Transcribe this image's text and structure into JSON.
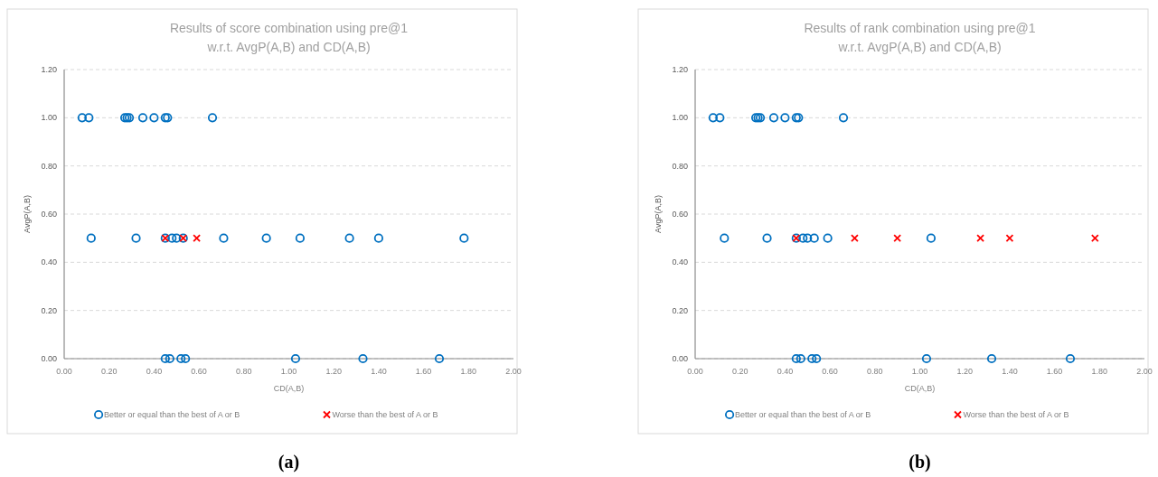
{
  "chart_data": [
    {
      "type": "scatter",
      "title": "Results of score combination using pre@1\nw.r.t. AvgP(A,B) and CD(A,B)",
      "xlabel": "CD(A,B)",
      "ylabel": "AvgP(A,B)",
      "xlim": [
        0,
        2
      ],
      "ylim": [
        0,
        1.2
      ],
      "xticks": [
        {
          "value": 0,
          "label": "0.00"
        },
        {
          "value": 0.2,
          "label": "0.20"
        },
        {
          "value": 0.4,
          "label": "0.40"
        },
        {
          "value": 0.6,
          "label": "0.60"
        },
        {
          "value": 0.8,
          "label": "0.80"
        },
        {
          "value": 1,
          "label": "1.00"
        },
        {
          "value": 1.2,
          "label": "1.20"
        },
        {
          "value": 1.4,
          "label": "1.40"
        },
        {
          "value": 1.6,
          "label": "1.60"
        },
        {
          "value": 1.8,
          "label": "1.80"
        },
        {
          "value": 2,
          "label": "2.00"
        }
      ],
      "yticks": [
        {
          "value": 0,
          "label": "0.00"
        },
        {
          "value": 0.2,
          "label": "0.20"
        },
        {
          "value": 0.4,
          "label": "0.40"
        },
        {
          "value": 0.6,
          "label": "0.60"
        },
        {
          "value": 0.8,
          "label": "0.80"
        },
        {
          "value": 1,
          "label": "1.00"
        },
        {
          "value": 1.2,
          "label": "1.20"
        }
      ],
      "grid": "y",
      "legend": "bottom",
      "annotations": [
        "(a)"
      ],
      "series": [
        {
          "name": "Better or equal than the best of A or B",
          "color": "#0070c0",
          "marker": "circle",
          "x": [
            0.08,
            0.11,
            0.27,
            0.28,
            0.29,
            0.35,
            0.4,
            0.45,
            0.46,
            0.66,
            0.12,
            0.32,
            0.45,
            0.48,
            0.5,
            0.53,
            0.71,
            0.9,
            1.05,
            1.27,
            1.4,
            1.78,
            0.45,
            0.47,
            0.52,
            0.54,
            1.03,
            1.33,
            1.67
          ],
          "values": [
            1,
            1,
            1,
            1,
            1,
            1,
            1,
            1,
            1,
            1,
            0.5,
            0.5,
            0.5,
            0.5,
            0.5,
            0.5,
            0.5,
            0.5,
            0.5,
            0.5,
            0.5,
            0.5,
            0,
            0,
            0,
            0,
            0,
            0,
            0
          ]
        },
        {
          "name": "Worse than the best of A or B",
          "color": "#ff0000",
          "marker": "cross",
          "x": [
            0.45,
            0.53,
            0.59
          ],
          "values": [
            0.5,
            0.5,
            0.5
          ]
        }
      ]
    },
    {
      "type": "scatter",
      "title": "Results of rank combination using pre@1\nw.r.t. AvgP(A,B) and CD(A,B)",
      "xlabel": "CD(A,B)",
      "ylabel": "AvgP(A,B)",
      "xlim": [
        0,
        2
      ],
      "ylim": [
        0,
        1.2
      ],
      "xticks": [
        {
          "value": 0,
          "label": "0.00"
        },
        {
          "value": 0.2,
          "label": "0.20"
        },
        {
          "value": 0.4,
          "label": "0.40"
        },
        {
          "value": 0.6,
          "label": "0.60"
        },
        {
          "value": 0.8,
          "label": "0.80"
        },
        {
          "value": 1,
          "label": "1.00"
        },
        {
          "value": 1.2,
          "label": "1.20"
        },
        {
          "value": 1.4,
          "label": "1.40"
        },
        {
          "value": 1.6,
          "label": "1.60"
        },
        {
          "value": 1.8,
          "label": "1.80"
        },
        {
          "value": 2,
          "label": "2.00"
        }
      ],
      "yticks": [
        {
          "value": 0,
          "label": "0.00"
        },
        {
          "value": 0.2,
          "label": "0.20"
        },
        {
          "value": 0.4,
          "label": "0.40"
        },
        {
          "value": 0.6,
          "label": "0.60"
        },
        {
          "value": 0.8,
          "label": "0.80"
        },
        {
          "value": 1,
          "label": "1.00"
        },
        {
          "value": 1.2,
          "label": "1.20"
        }
      ],
      "grid": "y",
      "legend": "bottom",
      "annotations": [
        "(b)"
      ],
      "series": [
        {
          "name": "Better or equal than the best of A or B",
          "color": "#0070c0",
          "marker": "circle",
          "x": [
            0.08,
            0.11,
            0.27,
            0.28,
            0.29,
            0.35,
            0.4,
            0.45,
            0.46,
            0.66,
            0.13,
            0.32,
            0.45,
            0.48,
            0.5,
            0.53,
            0.59,
            1.05,
            0.45,
            0.47,
            0.52,
            0.54,
            1.03,
            1.32,
            1.67
          ],
          "values": [
            1,
            1,
            1,
            1,
            1,
            1,
            1,
            1,
            1,
            1,
            0.5,
            0.5,
            0.5,
            0.5,
            0.5,
            0.5,
            0.5,
            0.5,
            0,
            0,
            0,
            0,
            0,
            0,
            0
          ]
        },
        {
          "name": "Worse than the best of A or B",
          "color": "#ff0000",
          "marker": "cross",
          "x": [
            0.45,
            0.71,
            0.9,
            1.27,
            1.4,
            1.78
          ],
          "values": [
            0.5,
            0.5,
            0.5,
            0.5,
            0.5,
            0.5
          ]
        }
      ]
    }
  ]
}
